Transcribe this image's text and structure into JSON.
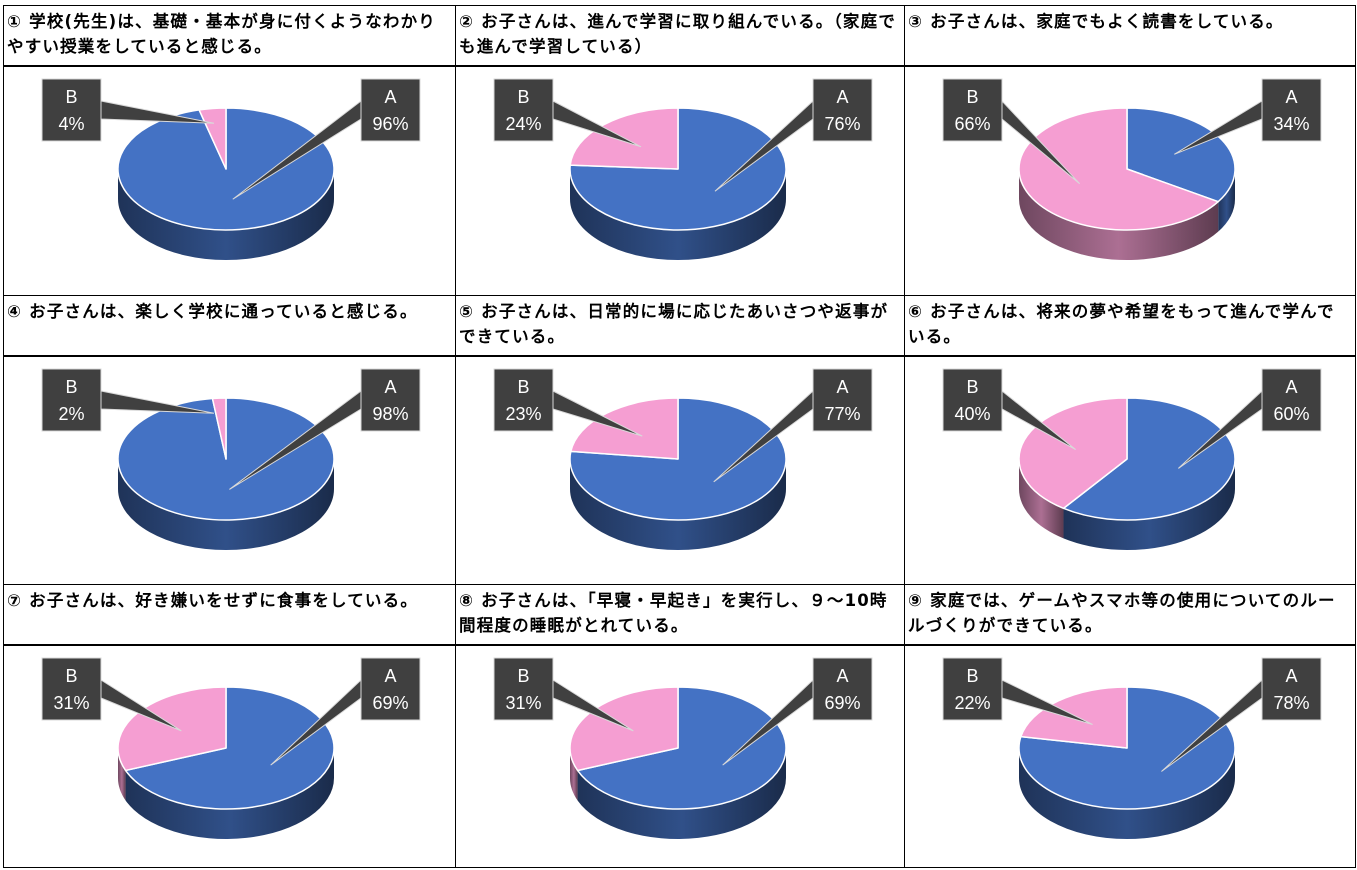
{
  "chart_data": [
    {
      "type": "pie",
      "title": "① 学校(先生)は、基礎・基本が身に付くようなわかりやすい授業をしていると感じる。",
      "categories": [
        "A",
        "B"
      ],
      "values": [
        96,
        4
      ],
      "labels": [
        "96%",
        "4%"
      ],
      "colors": [
        "#4472C4",
        "#F59ED2"
      ]
    },
    {
      "type": "pie",
      "title": "② お子さんは、進んで学習に取り組んでいる。（家庭でも進んで学習している）",
      "categories": [
        "A",
        "B"
      ],
      "values": [
        76,
        24
      ],
      "labels": [
        "76%",
        "24%"
      ],
      "colors": [
        "#4472C4",
        "#F59ED2"
      ]
    },
    {
      "type": "pie",
      "title": "③ お子さんは、家庭でもよく読書をしている。",
      "categories": [
        "A",
        "B"
      ],
      "values": [
        34,
        66
      ],
      "labels": [
        "34%",
        "66%"
      ],
      "colors": [
        "#4472C4",
        "#F59ED2"
      ]
    },
    {
      "type": "pie",
      "title": "④ お子さんは、楽しく学校に通っていると感じる。",
      "categories": [
        "A",
        "B"
      ],
      "values": [
        98,
        2
      ],
      "labels": [
        "98%",
        "2%"
      ],
      "colors": [
        "#4472C4",
        "#F59ED2"
      ]
    },
    {
      "type": "pie",
      "title": "⑤ お子さんは、日常的に場に応じたあいさつや返事ができている。",
      "categories": [
        "A",
        "B"
      ],
      "values": [
        77,
        23
      ],
      "labels": [
        "77%",
        "23%"
      ],
      "colors": [
        "#4472C4",
        "#F59ED2"
      ]
    },
    {
      "type": "pie",
      "title": "⑥ お子さんは、将来の夢や希望をもって進んで学んでいる。",
      "categories": [
        "A",
        "B"
      ],
      "values": [
        60,
        40
      ],
      "labels": [
        "60%",
        "40%"
      ],
      "colors": [
        "#4472C4",
        "#F59ED2"
      ]
    },
    {
      "type": "pie",
      "title": "⑦ お子さんは、好き嫌いをせずに食事をしている。",
      "categories": [
        "A",
        "B"
      ],
      "values": [
        69,
        31
      ],
      "labels": [
        "69%",
        "31%"
      ],
      "colors": [
        "#4472C4",
        "#F59ED2"
      ]
    },
    {
      "type": "pie",
      "title": "⑧ お子さんは、「早寝・早起き」を実行し、９～10時間程度の睡眠がとれている。",
      "categories": [
        "A",
        "B"
      ],
      "values": [
        69,
        31
      ],
      "labels": [
        "69%",
        "31%"
      ],
      "colors": [
        "#4472C4",
        "#F59ED2"
      ]
    },
    {
      "type": "pie",
      "title": "⑨ 家庭では、ゲームやスマホ等の使用についてのルールづくりができている。",
      "categories": [
        "A",
        "B"
      ],
      "values": [
        78,
        22
      ],
      "labels": [
        "78%",
        "22%"
      ],
      "colors": [
        "#4472C4",
        "#F59ED2"
      ]
    }
  ]
}
